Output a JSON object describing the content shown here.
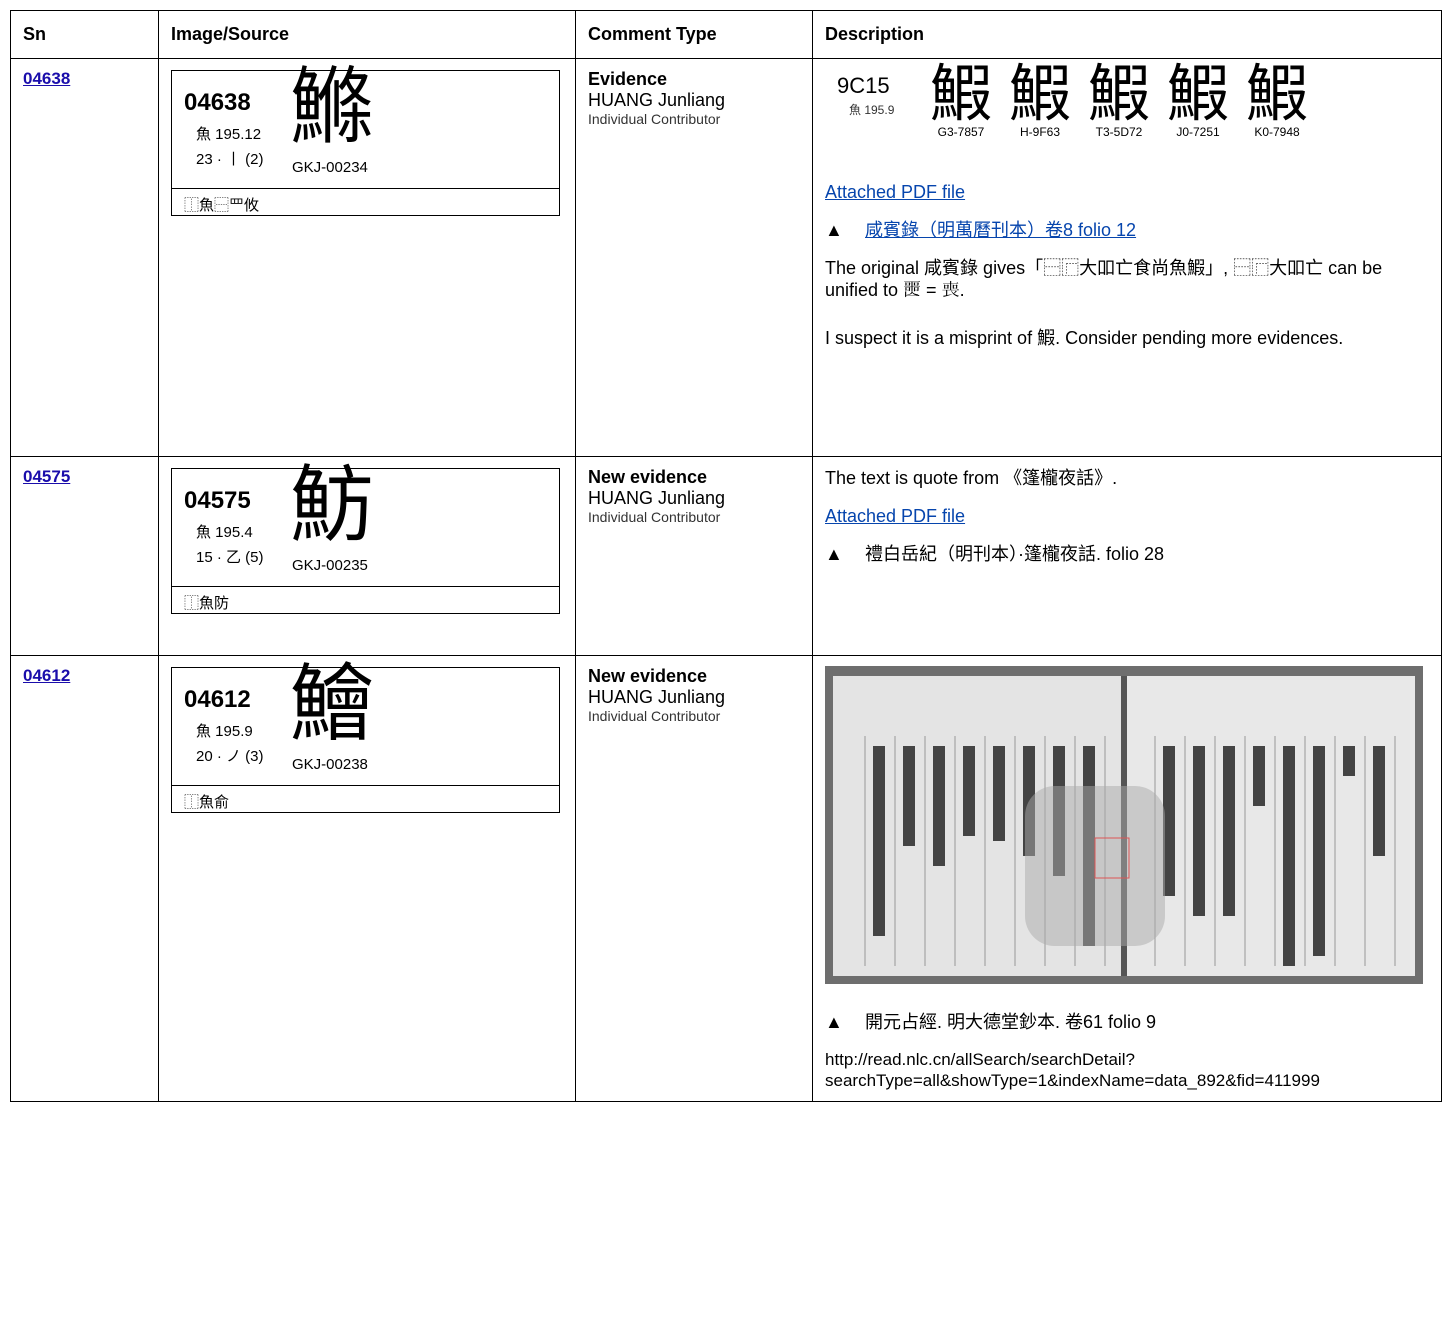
{
  "table": {
    "header": [
      "Sn",
      "Image/Source",
      "Comment Type",
      "Description"
    ],
    "rows": [
      {
        "sn": "04638",
        "card": {
          "code": "04638",
          "radical": "魚 195.12",
          "strokes": "23 · 丨 (2)",
          "source": "GKJ-00234",
          "glyph": "鰷",
          "ids": "⿰魚⿱罒攸"
        },
        "comment": {
          "type": "Evidence",
          "author": "HUANG Junliang",
          "role": "Individual Contributor"
        },
        "evidence": {
          "code": "9C15",
          "radical": "魚 195.9",
          "glyphs": [
            {
              "glyph": "鰕",
              "source": "G3-7857"
            },
            {
              "glyph": "鰕",
              "source": "H-9F63"
            },
            {
              "glyph": "鰕",
              "source": "T3-5D72"
            },
            {
              "glyph": "鰕",
              "source": "J0-7251"
            },
            {
              "glyph": "鰕",
              "source": "K0-7948"
            }
          ]
        },
        "pdf_link": "Attached PDF file",
        "reference": {
          "marker": "▲",
          "text": "咸賓錄（明萬曆刊本）卷8 folio 12"
        },
        "paragraphs": [
          "The original 咸賓錄 gives「⿱⿸大吅亡食尚魚鰕」, ⿱⿸大吅亡 can be unified to 𡂤 = 喪.",
          "I suspect it is a misprint of 鰕. Consider pending more evidences."
        ]
      },
      {
        "sn": "04575",
        "card": {
          "code": "04575",
          "radical": "魚 195.4",
          "strokes": "15 · 乙 (5)",
          "source": "GKJ-00235",
          "glyph": "魴",
          "ids": "⿰魚防"
        },
        "comment": {
          "type": "New evidence",
          "author": "HUANG Junliang",
          "role": "Individual Contributor"
        },
        "intro": "The text is quote from 《篷櫳夜話》.",
        "pdf_link": "Attached PDF file",
        "reference": {
          "marker": "▲",
          "text": "禮白岳紀（明刊本）·篷櫳夜話. folio 28"
        }
      },
      {
        "sn": "04612",
        "card": {
          "code": "04612",
          "radical": "魚 195.9",
          "strokes": "20 · ノ (3)",
          "source": "GKJ-00238",
          "glyph": "鱠",
          "ids": "⿰魚俞"
        },
        "comment": {
          "type": "New evidence",
          "author": "HUANG Junliang",
          "role": "Individual Contributor"
        },
        "reference": {
          "marker": "▲",
          "text": "開元占經. 明大德堂鈔本. 卷61 folio 9"
        },
        "url": "http://read.nlc.cn/allSearch/searchDetail?searchType=all&showType=1&indexName=data_892&fid=411999"
      }
    ]
  }
}
